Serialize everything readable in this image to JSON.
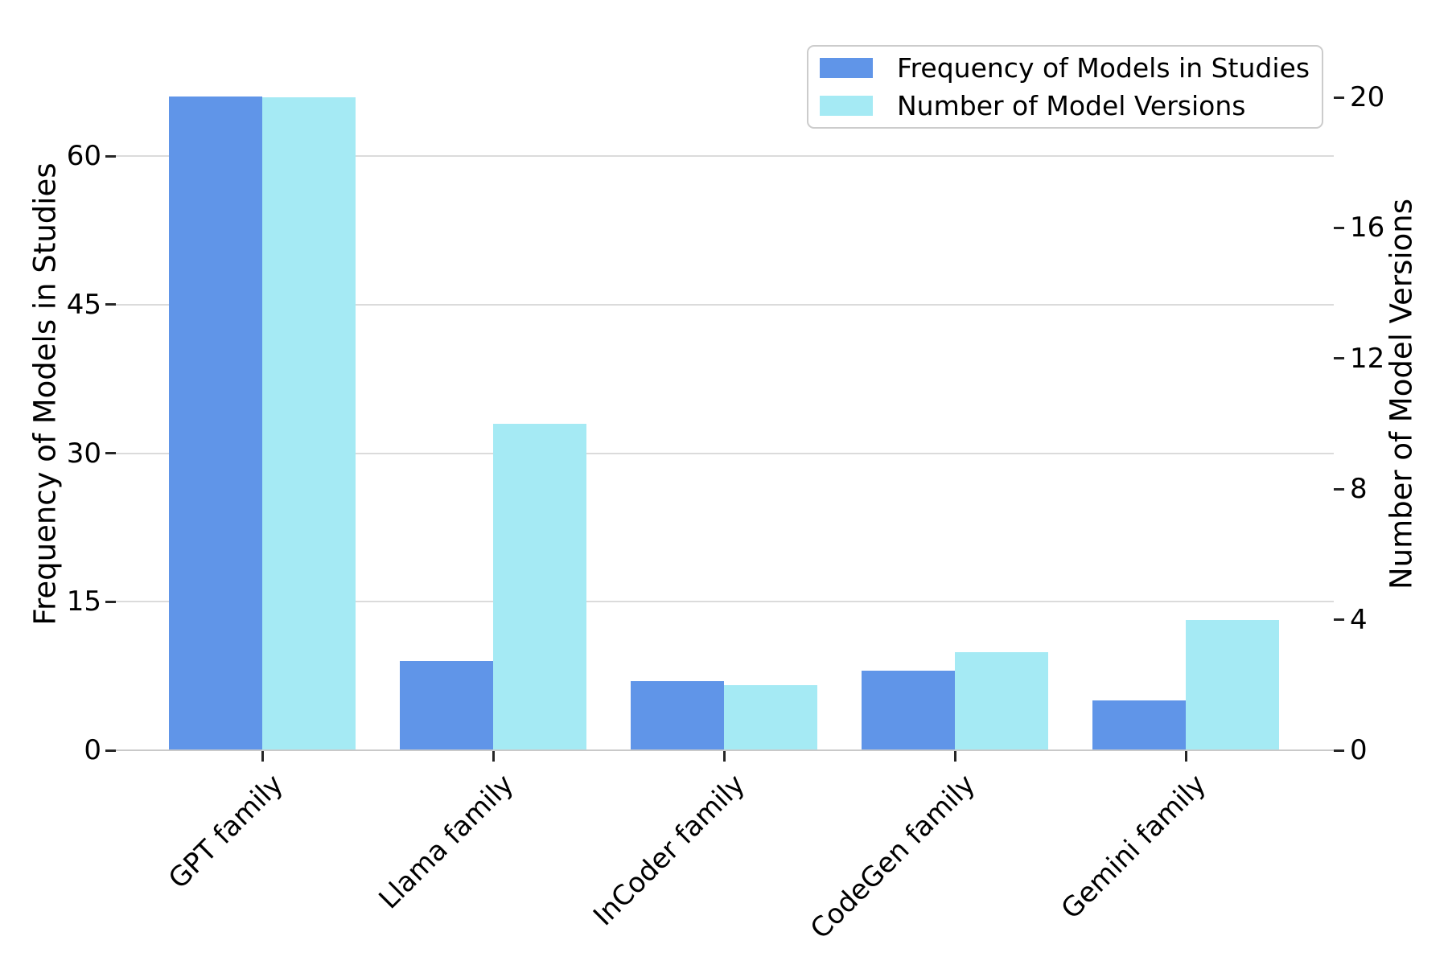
{
  "chart_data": {
    "type": "bar",
    "title": "",
    "categories": [
      "GPT family",
      "Llama family",
      "InCoder family",
      "CodeGen family",
      "Gemini family"
    ],
    "series": [
      {
        "name": "Frequency of Models in Studies",
        "axis": "left",
        "color": "#6095E8",
        "values": [
          66,
          9,
          7,
          8,
          5
        ]
      },
      {
        "name": "Number of Model Versions",
        "axis": "right",
        "color": "#A5EAF4",
        "values": [
          20,
          10,
          2,
          3,
          4
        ]
      }
    ],
    "left_axis": {
      "label": "Frequency of Models in Studies",
      "ticks": [
        0,
        15,
        30,
        45,
        60
      ],
      "range": [
        0,
        66
      ]
    },
    "right_axis": {
      "label": "Number of Model Versions",
      "ticks": [
        0,
        4,
        8,
        12,
        16,
        20
      ],
      "range": [
        0,
        20
      ]
    },
    "legend": {
      "position": "upper right"
    },
    "grid": {
      "horizontal": true,
      "vertical": false
    }
  },
  "colors": {
    "blue_bar": "#6095E8",
    "cyan_bar": "#A5EAF4",
    "gridline": "#DBDBDB",
    "axis_line": "#C9C9C9",
    "tick_mark": "#262626",
    "text": "#000000",
    "legend_border": "#CCCCCC",
    "background": "#FFFFFF"
  }
}
